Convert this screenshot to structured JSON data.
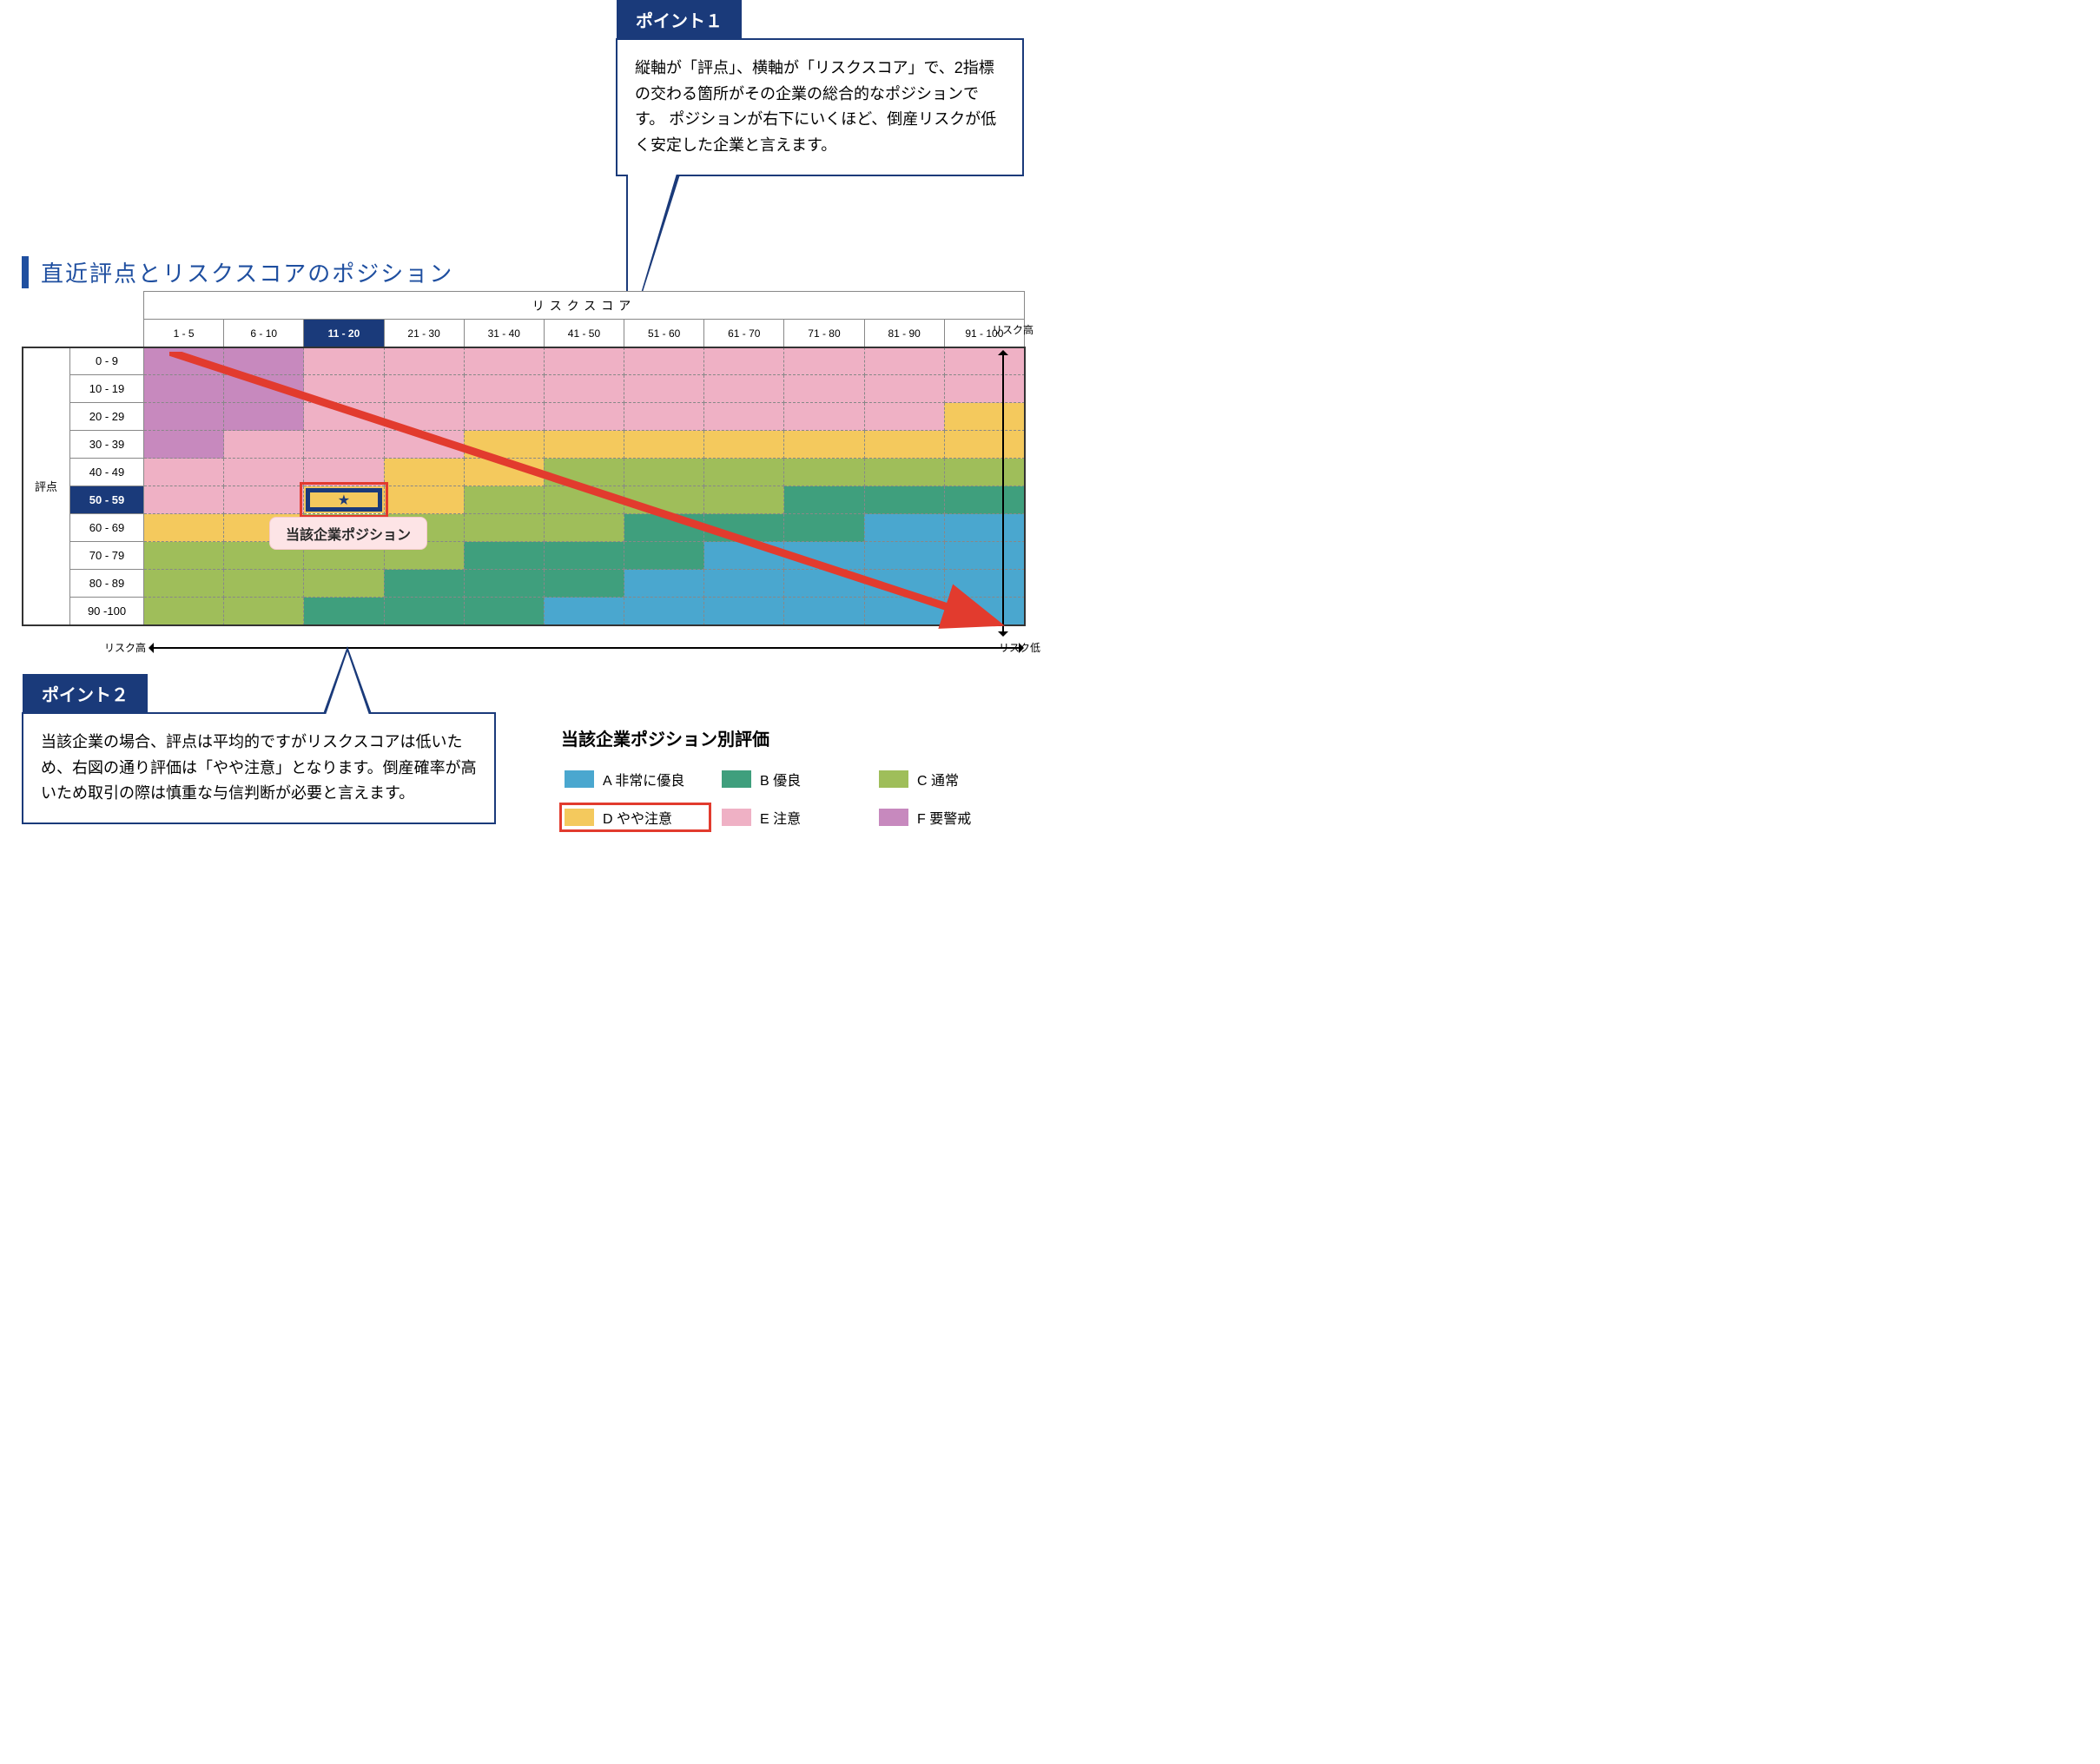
{
  "title": "直近評点とリスクスコアのポジション",
  "matrix": {
    "x_title": "リスクスコア",
    "y_title": "評点",
    "x_risk_high": "リスク高",
    "bottom_risk_high": "リスク高",
    "bottom_risk_low": "リスク低",
    "col_headers": [
      "1 - 5",
      "6 - 10",
      "11 - 20",
      "21 - 30",
      "31 - 40",
      "41 - 50",
      "51 - 60",
      "61 - 70",
      "71 - 80",
      "81 - 90",
      "91 - 100"
    ],
    "active_col_index": 2,
    "row_headers": [
      "0 - 9",
      "10 - 19",
      "20 - 29",
      "30 - 39",
      "40 - 49",
      "50 - 59",
      "60 - 69",
      "70 - 79",
      "80 - 89",
      "90 -100"
    ],
    "active_row_index": 5,
    "cell_colors": [
      [
        "F",
        "F",
        "E",
        "E",
        "E",
        "E",
        "E",
        "E",
        "E",
        "E",
        "E"
      ],
      [
        "F",
        "F",
        "E",
        "E",
        "E",
        "E",
        "E",
        "E",
        "E",
        "E",
        "E"
      ],
      [
        "F",
        "F",
        "E",
        "E",
        "E",
        "E",
        "E",
        "E",
        "E",
        "E",
        "D"
      ],
      [
        "F",
        "E",
        "E",
        "E",
        "D",
        "D",
        "D",
        "D",
        "D",
        "D",
        "D"
      ],
      [
        "E",
        "E",
        "E",
        "D",
        "D",
        "C",
        "C",
        "C",
        "C",
        "C",
        "C"
      ],
      [
        "E",
        "E",
        "D",
        "D",
        "C",
        "C",
        "C",
        "C",
        "B",
        "B",
        "B"
      ],
      [
        "D",
        "D",
        "C",
        "C",
        "C",
        "C",
        "B",
        "B",
        "B",
        "A",
        "A"
      ],
      [
        "C",
        "C",
        "C",
        "C",
        "B",
        "B",
        "B",
        "A",
        "A",
        "A",
        "A"
      ],
      [
        "C",
        "C",
        "C",
        "B",
        "B",
        "B",
        "A",
        "A",
        "A",
        "A",
        "A"
      ],
      [
        "C",
        "C",
        "B",
        "B",
        "B",
        "A",
        "A",
        "A",
        "A",
        "A",
        "A"
      ]
    ],
    "star": {
      "row": 5,
      "col": 2,
      "glyph": "★"
    }
  },
  "position_label": "当該企業ポジション",
  "callout1": {
    "tag": "ポイント１",
    "text": "縦軸が「評点」、横軸が「リスクスコア」で、2指標の交わる箇所がその企業の総合的なポジションです。\nポジションが右下にいくほど、倒産リスクが低く安定した企業と言えます。"
  },
  "callout2": {
    "tag": "ポイント２",
    "text": "当該企業の場合、評点は平均的ですがリスクスコアは低いため、右図の通り評価は「やや注意」となります。倒産確率が高いため取引の際は慎重な与信判断が必要と言えます。"
  },
  "legend": {
    "title": "当該企業ポジション別評価",
    "items": [
      {
        "code": "A",
        "label": "A 非常に優良",
        "color": "#4aa7cf"
      },
      {
        "code": "B",
        "label": "B 優良",
        "color": "#3f9f7d"
      },
      {
        "code": "C",
        "label": "C 通常",
        "color": "#9fbe5a"
      },
      {
        "code": "D",
        "label": "D やや注意",
        "color": "#f4c95d"
      },
      {
        "code": "E",
        "label": "E 注意",
        "color": "#efb1c5"
      },
      {
        "code": "F",
        "label": "F 要警戒",
        "color": "#c789be"
      }
    ],
    "highlight_code": "D"
  },
  "colors": {
    "brand": "#1a3a7a",
    "arrow": "#e23b2e"
  }
}
